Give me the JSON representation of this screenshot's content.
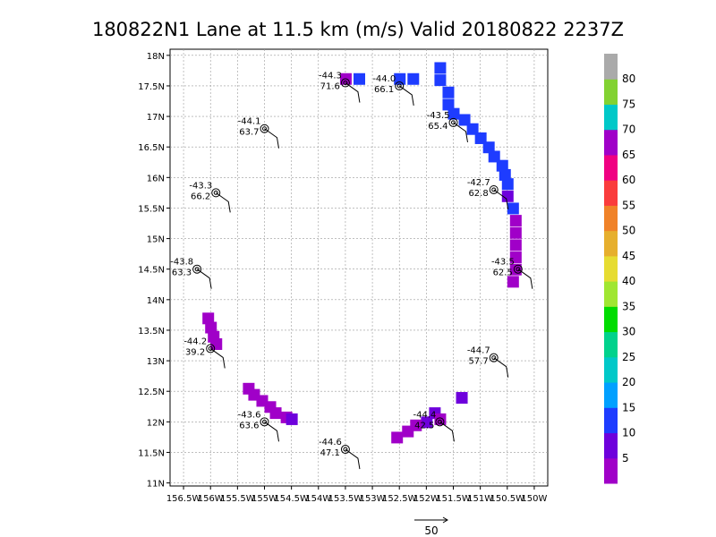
{
  "chart_data": {
    "type": "scatter",
    "title": "180822N1 Lane at 11.5 km (m/s) Valid 20180822  2237Z",
    "xlim": [
      -156.75,
      -149.75
    ],
    "ylim": [
      10.95,
      18.1
    ],
    "grid": true,
    "x_ticks": [
      -156.5,
      -156,
      -155.5,
      -155,
      -154.5,
      -154,
      -153.5,
      -153,
      -152.5,
      -152,
      -151.5,
      -151,
      -150.5,
      -150
    ],
    "x_tick_labels": [
      "156.5W",
      "156W",
      "155.5W",
      "155W",
      "154.5W",
      "154W",
      "153.5W",
      "153W",
      "152.5W",
      "152W",
      "151.5W",
      "151W",
      "150.5W",
      "150W"
    ],
    "y_ticks": [
      11,
      11.5,
      12,
      12.5,
      13,
      13.5,
      14,
      14.5,
      15,
      15.5,
      16,
      16.5,
      17,
      17.5,
      18
    ],
    "y_tick_labels": [
      "11N",
      "11.5N",
      "12N",
      "12.5N",
      "13N",
      "13.5N",
      "14N",
      "14.5N",
      "15N",
      "15.5N",
      "16N",
      "16.5N",
      "17N",
      "17.5N",
      "18N"
    ],
    "colorbar": {
      "colors": [
        "#a000c8",
        "#6e00dc",
        "#1e3cff",
        "#00a0ff",
        "#00c8c8",
        "#00d28c",
        "#00dc00",
        "#a0e632",
        "#e6dc32",
        "#e6af2d",
        "#f08228",
        "#fa3c3c",
        "#f00082",
        "#a000c8",
        "#00c8c8",
        "#82d232",
        "#aaaaaa"
      ],
      "labels": [
        "5",
        "10",
        "15",
        "20",
        "25",
        "30",
        "35",
        "40",
        "45",
        "50",
        "55",
        "60",
        "65",
        "70",
        "75",
        "80"
      ]
    },
    "stations": [
      {
        "lon": -153.5,
        "lat": 17.55,
        "label1": "-44.3",
        "label2": "71.6"
      },
      {
        "lon": -152.5,
        "lat": 17.5,
        "label1": "-44.0",
        "label2": "66.1"
      },
      {
        "lon": -155.0,
        "lat": 16.8,
        "label1": "-44.1",
        "label2": "63.7"
      },
      {
        "lon": -151.5,
        "lat": 16.9,
        "label1": "-43.5",
        "label2": "65.4"
      },
      {
        "lon": -155.9,
        "lat": 15.75,
        "label1": "-43.3",
        "label2": "66.2"
      },
      {
        "lon": -150.75,
        "lat": 15.8,
        "label1": "-42.7",
        "label2": "62.8"
      },
      {
        "lon": -156.25,
        "lat": 14.5,
        "label1": "-43.8",
        "label2": "63.3"
      },
      {
        "lon": -150.3,
        "lat": 14.5,
        "label1": "-43.5",
        "label2": "62.5"
      },
      {
        "lon": -156.0,
        "lat": 13.2,
        "label1": "-44.2",
        "label2": "39.2"
      },
      {
        "lon": -150.75,
        "lat": 13.05,
        "label1": "-44.7",
        "label2": "57.7"
      },
      {
        "lon": -155.0,
        "lat": 12.0,
        "label1": "-43.6",
        "label2": "63.6"
      },
      {
        "lon": -151.75,
        "lat": 12.0,
        "label1": "-44.4",
        "label2": "42.5"
      },
      {
        "lon": -153.5,
        "lat": 11.55,
        "label1": "-44.6",
        "label2": "47.1"
      }
    ],
    "reference_vector": "50"
  }
}
